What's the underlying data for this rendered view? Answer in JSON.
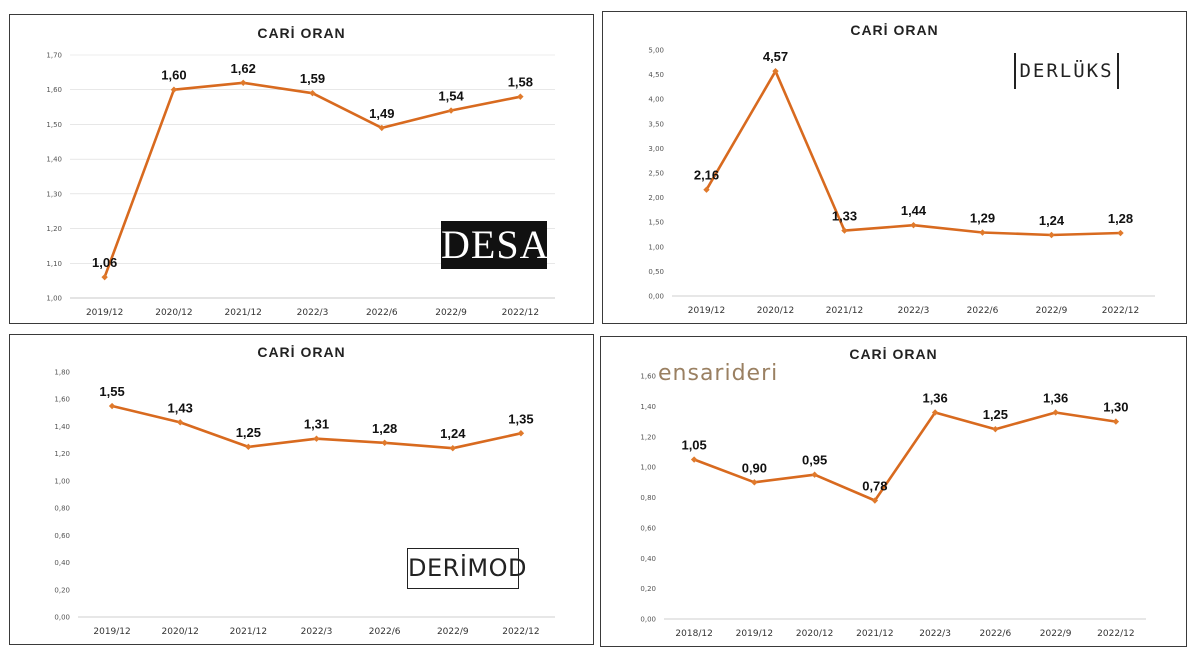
{
  "colors": {
    "line": "#d86a1f",
    "marker": "#e07a2c",
    "grid": "#d9d9d9"
  },
  "chart_data": [
    {
      "type": "line",
      "title": "CARİ ORAN",
      "logo": "DESA",
      "categories": [
        "2019/12",
        "2020/12",
        "2021/12",
        "2022/3",
        "2022/6",
        "2022/9",
        "2022/12"
      ],
      "values": [
        1.06,
        1.6,
        1.62,
        1.59,
        1.49,
        1.54,
        1.58
      ],
      "data_labels": [
        "1,06",
        "1,60",
        "1,62",
        "1,59",
        "1,49",
        "1,54",
        "1,58"
      ],
      "ylim": [
        1.0,
        1.7
      ],
      "yticks": [
        "1,00",
        "1,10",
        "1,20",
        "1,30",
        "1,40",
        "1,50",
        "1,60",
        "1,70"
      ],
      "grid": true
    },
    {
      "type": "line",
      "title": "CARİ ORAN",
      "logo": "DERLÜKS",
      "categories": [
        "2019/12",
        "2020/12",
        "2021/12",
        "2022/3",
        "2022/6",
        "2022/9",
        "2022/12"
      ],
      "values": [
        2.16,
        4.57,
        1.33,
        1.44,
        1.29,
        1.24,
        1.28
      ],
      "data_labels": [
        "2,16",
        "4,57",
        "1,33",
        "1,44",
        "1,29",
        "1,24",
        "1,28"
      ],
      "ylim": [
        0.0,
        5.0
      ],
      "yticks": [
        "0,00",
        "0,50",
        "1,00",
        "1,50",
        "2,00",
        "2,50",
        "3,00",
        "3,50",
        "4,00",
        "4,50",
        "5,00"
      ],
      "grid": false
    },
    {
      "type": "line",
      "title": "CARİ ORAN",
      "logo": "DERİMOD",
      "categories": [
        "2019/12",
        "2020/12",
        "2021/12",
        "2022/3",
        "2022/6",
        "2022/9",
        "2022/12"
      ],
      "values": [
        1.55,
        1.43,
        1.25,
        1.31,
        1.28,
        1.24,
        1.35
      ],
      "data_labels": [
        "1,55",
        "1,43",
        "1,25",
        "1,31",
        "1,28",
        "1,24",
        "1,35"
      ],
      "ylim": [
        0.0,
        1.8
      ],
      "yticks": [
        "0,00",
        "0,20",
        "0,40",
        "0,60",
        "0,80",
        "1,00",
        "1,20",
        "1,40",
        "1,60",
        "1,80"
      ],
      "grid": false
    },
    {
      "type": "line",
      "title": "CARİ ORAN",
      "logo": "ensarideri",
      "categories": [
        "2018/12",
        "2019/12",
        "2020/12",
        "2021/12",
        "2022/3",
        "2022/6",
        "2022/9",
        "2022/12"
      ],
      "values": [
        1.05,
        0.9,
        0.95,
        0.78,
        1.36,
        1.25,
        1.36,
        1.3
      ],
      "data_labels": [
        "1,05",
        "0,90",
        "0,95",
        "0,78",
        "1,36",
        "1,25",
        "1,36",
        "1,30"
      ],
      "ylim": [
        0.0,
        1.6
      ],
      "yticks": [
        "0,00",
        "0,20",
        "0,40",
        "0,60",
        "0,80",
        "1,00",
        "1,20",
        "1,40",
        "1,60"
      ],
      "grid": false
    }
  ]
}
